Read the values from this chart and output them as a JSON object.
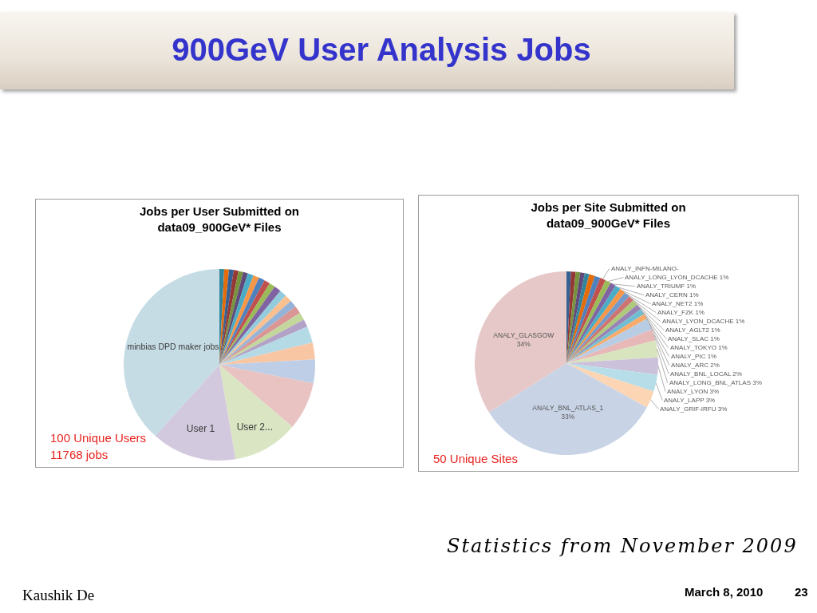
{
  "chart_data": [
    {
      "type": "other",
      "title": "900GeV User Analysis Jobs",
      "annotations": [
        "Statistics from November 2009",
        "Kaushik De",
        "March 8, 2010",
        "23"
      ]
    },
    {
      "type": "pie",
      "title": "Jobs per User Submitted on\ndata09_900GeV* Files",
      "categories": [
        null,
        null,
        null,
        null,
        null,
        null,
        null,
        null,
        null,
        null,
        null,
        null,
        null,
        null,
        null,
        null,
        null,
        null,
        null,
        null,
        null,
        null,
        "User 2...",
        "User 1",
        "minbias DPD maker jobs"
      ],
      "values": [
        0.8,
        0.8,
        0.8,
        0.8,
        0.8,
        0.8,
        1,
        1,
        1,
        1,
        1,
        1.2,
        1.2,
        1.2,
        1.2,
        1.3,
        1.3,
        1.3,
        2.8,
        2.8,
        4,
        8.1,
        11.1,
        14.4,
        38.3
      ],
      "colors": [
        "#31859c",
        "#e46c0a",
        "#366092",
        "#953735",
        "#77933c",
        "#604a7b",
        "#4bacc6",
        "#f79646",
        "#4f81bd",
        "#c0504d",
        "#9bbb59",
        "#8064a2",
        "#93cddd",
        "#fac090",
        "#95b3d7",
        "#d99694",
        "#c3d69b",
        "#b3a2c7",
        "#b4dae6",
        "#f9c6a4",
        "#bdcee6",
        "#e8c3c2",
        "#d9e5c3",
        "#d2c9de",
        "#c5dce5"
      ],
      "annotations": [
        "100 Unique Users",
        "11768 jobs"
      ]
    },
    {
      "type": "pie",
      "title": "Jobs per Site Submitted on\ndata09_900GeV* Files",
      "categories": [
        null,
        null,
        null,
        null,
        null,
        null,
        null,
        "ANALY_INFN-MILANO-",
        "ANALY_LONG_LYON_DCACHE",
        "ANALY_TRIUMF",
        "ANALY_CERN",
        "ANALY_NET2",
        "ANALY_FZK",
        "ANALY_LYON_DCACHE",
        "ANALY_AGLT2",
        "ANALY_SLAC",
        "ANALY_TOKYO",
        "ANALY_PIC",
        "ANALY_ARC",
        "ANALY_BNL_LOCAL",
        "ANALY_LONG_BNL_ATLAS",
        "ANALY_LYON",
        "ANALY_LAPP",
        "ANALY_GRIF-IRFU",
        "ANALY_BNL_ATLAS_1",
        "ANALY_GLASGOW"
      ],
      "values": [
        0.8,
        0.8,
        0.8,
        0.8,
        0.8,
        1,
        1,
        1,
        1,
        1,
        1,
        1,
        1,
        1,
        1,
        1,
        1,
        1,
        2,
        2,
        3,
        3,
        3,
        3,
        33,
        34
      ],
      "value_labels": [
        null,
        null,
        null,
        null,
        null,
        null,
        null,
        null,
        "1%",
        "1%",
        "1%",
        "1%",
        "1%",
        "1%",
        "1%",
        "1%",
        "1%",
        "1%",
        "2%",
        "2%",
        "3%",
        "3%",
        "3%",
        "3%",
        "33%",
        "34%"
      ],
      "colors": [
        "#366092",
        "#953735",
        "#77933c",
        "#604a7b",
        "#31859c",
        "#e46c0a",
        "#4f81bd",
        "#c0504d",
        "#9bbb59",
        "#8064a2",
        "#4bacc6",
        "#f79646",
        "#729aca",
        "#cd7371",
        "#afc97a",
        "#9983b5",
        "#6fbdd1",
        "#f9ab6b",
        "#b8cce4",
        "#e6b9b8",
        "#d7e4bd",
        "#ccc1da",
        "#b7dee8",
        "#fcd5b5",
        "#c8d4e6",
        "#e7c8c8"
      ],
      "annotations": [
        "50 Unique Sites"
      ]
    }
  ]
}
